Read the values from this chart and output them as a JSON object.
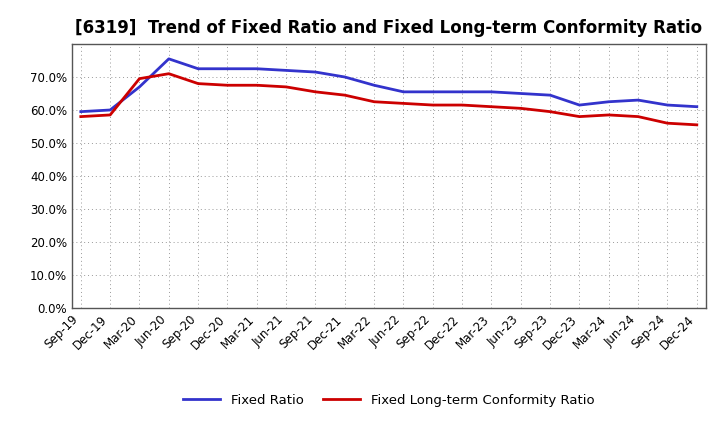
{
  "title": "[6319]  Trend of Fixed Ratio and Fixed Long-term Conformity Ratio",
  "x_labels": [
    "Sep-19",
    "Dec-19",
    "Mar-20",
    "Jun-20",
    "Sep-20",
    "Dec-20",
    "Mar-21",
    "Jun-21",
    "Sep-21",
    "Dec-21",
    "Mar-22",
    "Jun-22",
    "Sep-22",
    "Dec-22",
    "Mar-23",
    "Jun-23",
    "Sep-23",
    "Dec-23",
    "Mar-24",
    "Jun-24",
    "Sep-24",
    "Dec-24"
  ],
  "fixed_ratio": [
    59.5,
    60.0,
    67.0,
    75.5,
    72.5,
    72.5,
    72.5,
    72.0,
    71.5,
    70.0,
    67.5,
    65.5,
    65.5,
    65.5,
    65.5,
    65.0,
    64.5,
    61.5,
    62.5,
    63.0,
    61.5,
    61.0
  ],
  "fixed_ltcr": [
    58.0,
    58.5,
    69.5,
    71.0,
    68.0,
    67.5,
    67.5,
    67.0,
    65.5,
    64.5,
    62.5,
    62.0,
    61.5,
    61.5,
    61.0,
    60.5,
    59.5,
    58.0,
    58.5,
    58.0,
    56.0,
    55.5
  ],
  "fixed_ratio_color": "#3333cc",
  "fixed_ltcr_color": "#cc0000",
  "ylim": [
    0,
    80
  ],
  "yticks": [
    0,
    10,
    20,
    30,
    40,
    50,
    60,
    70
  ],
  "background_color": "#ffffff",
  "plot_bg_color": "#ffffff",
  "grid_color": "#aaaaaa",
  "legend_fixed_ratio": "Fixed Ratio",
  "legend_fixed_ltcr": "Fixed Long-term Conformity Ratio",
  "title_fontsize": 12,
  "tick_fontsize": 8.5,
  "legend_fontsize": 9.5
}
